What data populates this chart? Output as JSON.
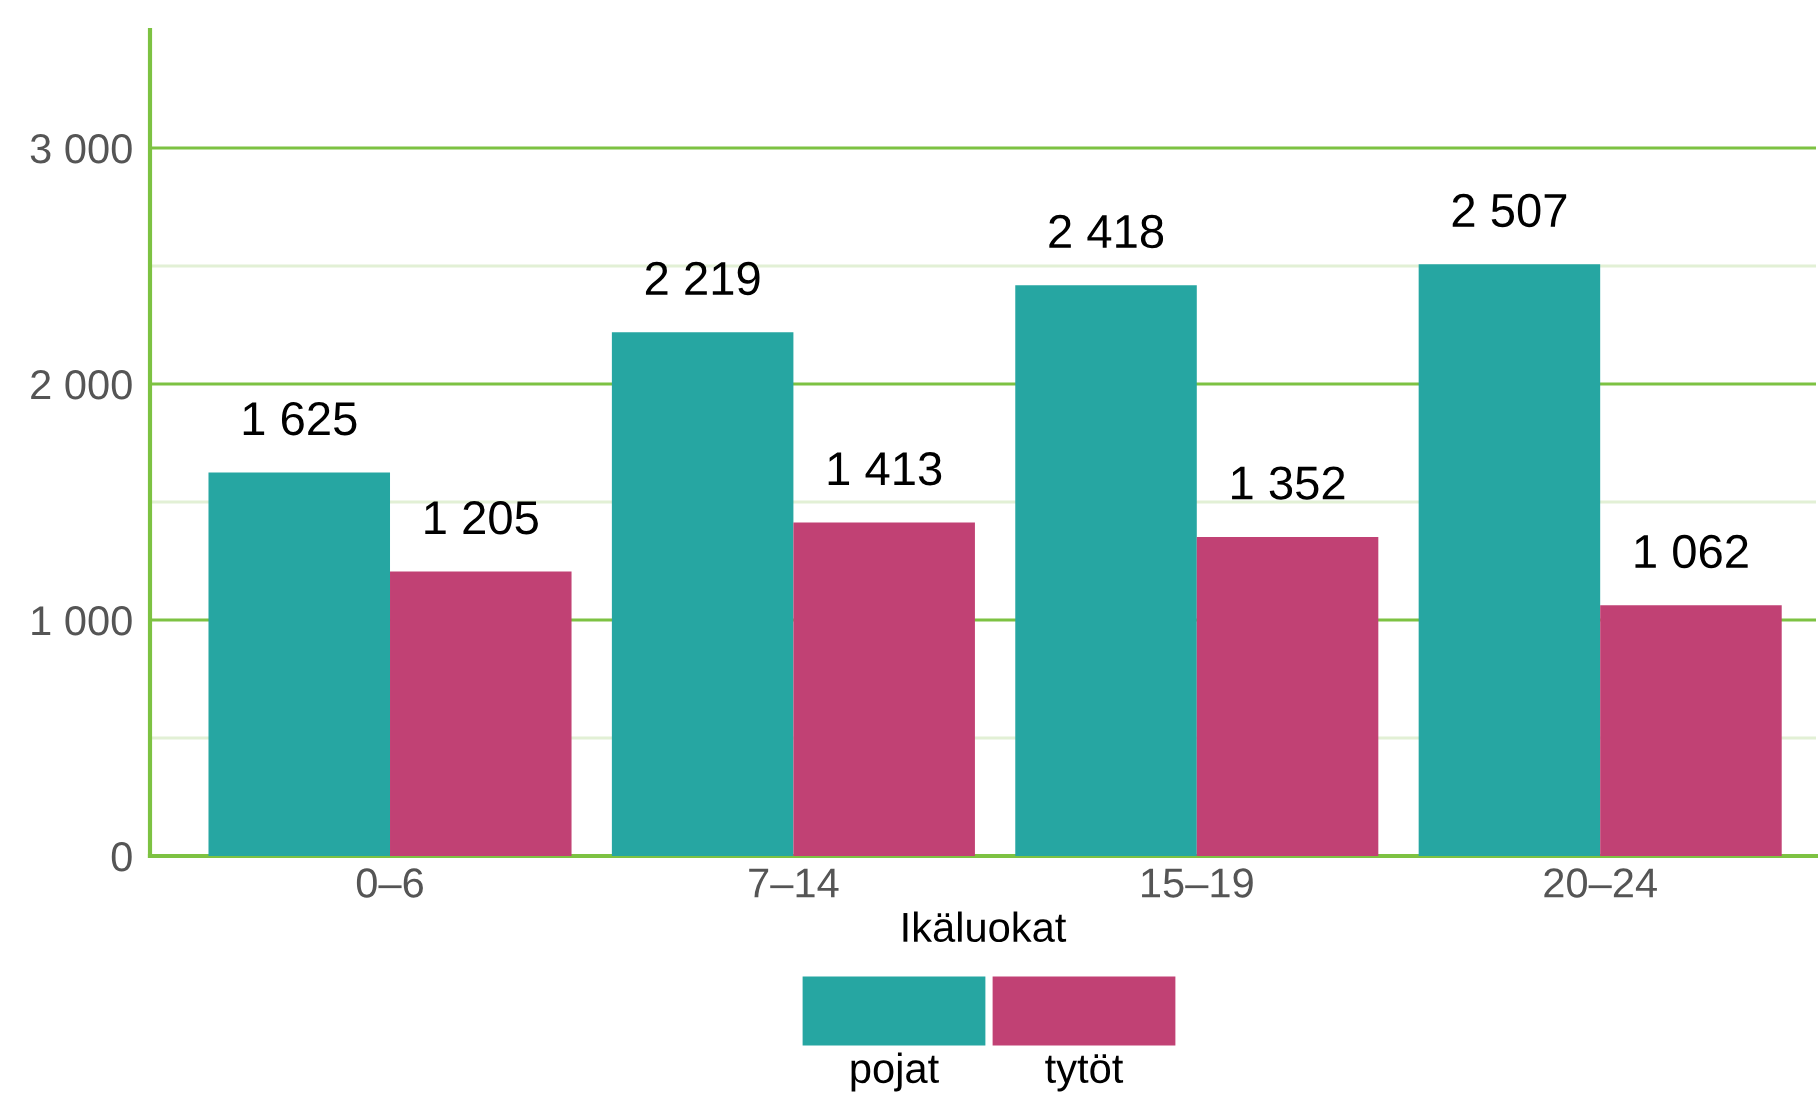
{
  "chart_data": {
    "type": "bar",
    "xlabel": "Ikäluokat",
    "categories": [
      "0–6",
      "7–14",
      "15–19",
      "20–24"
    ],
    "series": [
      {
        "name": "pojat",
        "color": "#26a6a2",
        "values": [
          1625,
          2219,
          2418,
          2507
        ],
        "value_labels": [
          "1 625",
          "2 219",
          "2 418",
          "2 507"
        ]
      },
      {
        "name": "tytöt",
        "color": "#c14174",
        "values": [
          1205,
          1413,
          1352,
          1062
        ],
        "value_labels": [
          "1 205",
          "1 413",
          "1 352",
          "1 062"
        ]
      }
    ],
    "ylim": [
      0,
      3500
    ],
    "yticks": [
      {
        "value": 0,
        "label": "0"
      },
      {
        "value": 500,
        "label": null
      },
      {
        "value": 1000,
        "label": "1 000"
      },
      {
        "value": 1500,
        "label": null
      },
      {
        "value": 2000,
        "label": "2 000"
      },
      {
        "value": 2500,
        "label": null
      },
      {
        "value": 3000,
        "label": "3 000"
      }
    ],
    "grid": "y",
    "legend": "bottom"
  }
}
